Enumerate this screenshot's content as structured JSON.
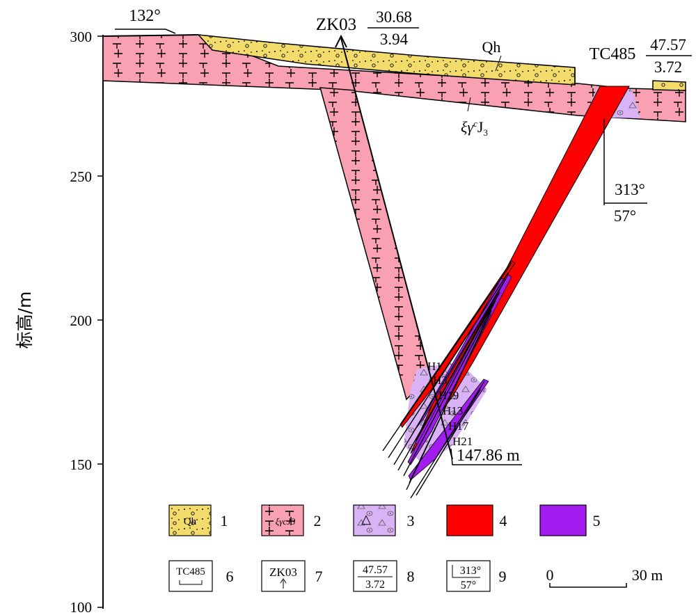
{
  "y_axis": {
    "label": "标高/m",
    "ticks": [
      "300",
      "250",
      "200",
      "150",
      "100"
    ]
  },
  "strike": {
    "value": "132°"
  },
  "drillhole": {
    "id": "ZK03",
    "upper": "30.68",
    "lower": "3.94"
  },
  "trench": {
    "id": "TC485",
    "upper": "47.57",
    "lower": "3.72"
  },
  "attitude": {
    "upper": "313°",
    "lower": "57°"
  },
  "labels": {
    "quaternary": "Qh",
    "granite": "ξγ",
    "granite_sup": "c",
    "granite_age": "J",
    "granite_sub": "3",
    "depth": "147.86 m"
  },
  "ore_bodies": [
    "H1",
    "H3",
    "H19",
    "H13",
    "H17",
    "H21"
  ],
  "legend": {
    "items": [
      {
        "num": "1",
        "symbol_text": "Qh",
        "color": "#f3dc6c"
      },
      {
        "num": "2",
        "symbol_text": "ξγcJ3",
        "color": "#f9a0b2"
      },
      {
        "num": "3",
        "symbol_text": "△",
        "color": "#d9b3f5"
      },
      {
        "num": "4",
        "symbol_text": "",
        "color": "#ff0000"
      },
      {
        "num": "5",
        "symbol_text": "",
        "color": "#a21cf0"
      },
      {
        "num": "6",
        "symbol_text": "TC485",
        "color": "#ffffff"
      },
      {
        "num": "7",
        "symbol_text": "ZK03",
        "color": "#ffffff"
      },
      {
        "num": "8",
        "symbol_text_upper": "47.57",
        "symbol_text_lower": "3.72",
        "color": "#ffffff"
      },
      {
        "num": "9",
        "symbol_text_upper": "313°",
        "symbol_text_lower": "57°",
        "color": "#ffffff"
      }
    ],
    "scale": {
      "start": "0",
      "end": "30 m"
    }
  }
}
